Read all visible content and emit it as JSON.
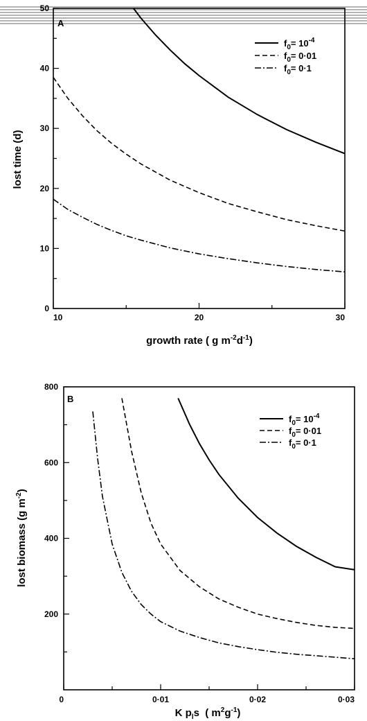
{
  "chart_data": [
    {
      "panel_label": "A",
      "type": "line",
      "xlabel": {
        "main": "growth rate ( g m",
        "sup1": "-2",
        "mid": "d",
        "sup2": "-1",
        "end": ")"
      },
      "ylabel": "lost time (d)",
      "xlim": [
        10,
        30
      ],
      "ylim": [
        0,
        50
      ],
      "x_ticks": [
        {
          "value": 10,
          "label": "10"
        },
        {
          "value": 20,
          "label": "20"
        },
        {
          "value": 30,
          "label": "30"
        }
      ],
      "x_minor_ticks": [
        15,
        25
      ],
      "y_ticks": [
        {
          "value": 0,
          "label": "0"
        },
        {
          "value": 10,
          "label": "10"
        },
        {
          "value": 20,
          "label": "20"
        },
        {
          "value": 30,
          "label": "30"
        },
        {
          "value": 40,
          "label": "40"
        },
        {
          "value": 50,
          "label": "50"
        }
      ],
      "y_minor_ticks": [
        5,
        15,
        25,
        35,
        45
      ],
      "legend_position": "top-right",
      "series": [
        {
          "name": "f0= 10-4",
          "legend": {
            "base": "f",
            "sub": "0",
            "mid": "= 10",
            "sup": "-4"
          },
          "style": "solid",
          "x": [
            15.5,
            16,
            17,
            18,
            19,
            20,
            22,
            24,
            26,
            28,
            30
          ],
          "y": [
            50,
            48.4,
            45.6,
            43.1,
            40.8,
            38.8,
            35.2,
            32.3,
            29.8,
            27.7,
            25.8
          ]
        },
        {
          "name": "f0= 0·01",
          "legend": {
            "base": "f",
            "sub": "0",
            "mid": "= 0·01",
            "sup": ""
          },
          "style": "dashed",
          "x": [
            10,
            11,
            12,
            13,
            14,
            15,
            16,
            18,
            20,
            22,
            24,
            26,
            28,
            30
          ],
          "y": [
            38.5,
            35.0,
            32.1,
            29.6,
            27.5,
            25.7,
            24.1,
            21.4,
            19.3,
            17.5,
            16.1,
            14.8,
            13.8,
            12.9
          ]
        },
        {
          "name": "f0= 0·1",
          "legend": {
            "base": "f",
            "sub": "0",
            "mid": "= 0·1",
            "sup": ""
          },
          "style": "dashdot",
          "x": [
            10,
            11,
            12,
            13,
            14,
            15,
            16,
            18,
            20,
            22,
            24,
            26,
            28,
            30
          ],
          "y": [
            18.2,
            16.5,
            15.2,
            14.0,
            13.0,
            12.1,
            11.4,
            10.1,
            9.1,
            8.3,
            7.6,
            7.0,
            6.5,
            6.1
          ]
        }
      ]
    },
    {
      "panel_label": "B",
      "type": "line",
      "xlabel": {
        "main": "K p",
        "sub1": "l",
        "mid": "s  ( m",
        "sup1": "2",
        "mid2": "g",
        "sup2": "-1",
        "end": ")"
      },
      "ylabel": {
        "main": "lost biomass (g m",
        "sup": "-2",
        "end": ")"
      },
      "xlim": [
        0,
        0.03
      ],
      "ylim": [
        0,
        800
      ],
      "x_ticks": [
        {
          "value": 0,
          "label": "0"
        },
        {
          "value": 0.01,
          "label": "0·01"
        },
        {
          "value": 0.02,
          "label": "0·02"
        },
        {
          "value": 0.03,
          "label": "0·03"
        }
      ],
      "x_minor_ticks": [
        0.005,
        0.015,
        0.025
      ],
      "y_ticks": [
        {
          "value": 200,
          "label": "200"
        },
        {
          "value": 400,
          "label": "400"
        },
        {
          "value": 600,
          "label": "600"
        },
        {
          "value": 800,
          "label": "800"
        }
      ],
      "y_minor_ticks": [
        100,
        300,
        500,
        700
      ],
      "legend_position": "top-right",
      "series": [
        {
          "name": "f0= 10-4",
          "legend": {
            "base": "f",
            "sub": "0",
            "mid": "= 10",
            "sup": "-4"
          },
          "style": "solid",
          "x": [
            0.0118,
            0.013,
            0.014,
            0.015,
            0.016,
            0.018,
            0.02,
            0.022,
            0.024,
            0.026,
            0.028,
            0.03
          ],
          "y": [
            770,
            700,
            650,
            607,
            569,
            506,
            455,
            414,
            379,
            350,
            325,
            317
          ]
        },
        {
          "name": "f0= 0·01",
          "legend": {
            "base": "f",
            "sub": "0",
            "mid": "= 0·01",
            "sup": ""
          },
          "style": "dashed",
          "x": [
            0.006,
            0.0065,
            0.007,
            0.008,
            0.009,
            0.01,
            0.012,
            0.014,
            0.016,
            0.018,
            0.02,
            0.022,
            0.024,
            0.026,
            0.028,
            0.03
          ],
          "y": [
            770,
            700,
            630,
            520,
            440,
            385,
            315,
            272,
            240,
            218,
            200,
            188,
            178,
            170,
            165,
            162
          ]
        },
        {
          "name": "f0= 0·1",
          "legend": {
            "base": "f",
            "sub": "0",
            "mid": "= 0·1",
            "sup": ""
          },
          "style": "dashdot",
          "x": [
            0.003,
            0.0035,
            0.004,
            0.005,
            0.006,
            0.007,
            0.008,
            0.009,
            0.01,
            0.012,
            0.014,
            0.016,
            0.018,
            0.02,
            0.022,
            0.024,
            0.026,
            0.028,
            0.03
          ],
          "y": [
            735,
            610,
            510,
            385,
            310,
            260,
            225,
            200,
            180,
            155,
            138,
            124,
            114,
            106,
            99,
            94,
            90,
            86,
            82
          ]
        }
      ]
    }
  ]
}
